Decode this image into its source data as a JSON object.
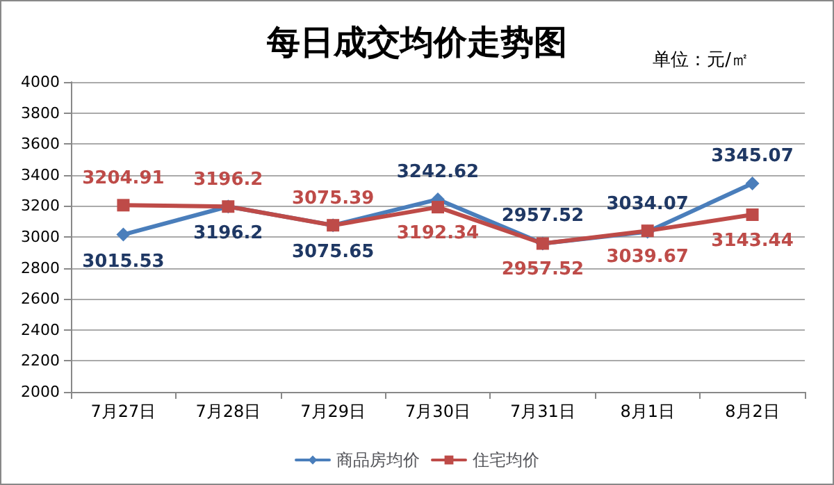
{
  "chart_data": {
    "type": "line",
    "title": "每日成交均价走势图",
    "annotations": [
      "单位：元/㎡"
    ],
    "categories": [
      "7月27日",
      "7月28日",
      "7月29日",
      "7月30日",
      "7月31日",
      "8月1日",
      "8月2日"
    ],
    "series": [
      {
        "name": "商品房均价",
        "color": "#4a7ebb",
        "marker": "diamond",
        "values": [
          3015.53,
          3196.2,
          3075.65,
          3242.62,
          2957.52,
          3034.07,
          3345.07
        ]
      },
      {
        "name": "住宅均价",
        "color": "#be4b48",
        "marker": "square",
        "values": [
          3204.91,
          3196.2,
          3075.39,
          3192.34,
          2957.52,
          3039.67,
          3143.44
        ]
      }
    ],
    "ylim": [
      2000,
      4000
    ],
    "yticks": [
      2000,
      2200,
      2400,
      2600,
      2800,
      3000,
      3200,
      3400,
      3600,
      3800,
      4000
    ],
    "grid": "y",
    "legend": "bottom",
    "data_labels": true,
    "line_style": "solid"
  }
}
